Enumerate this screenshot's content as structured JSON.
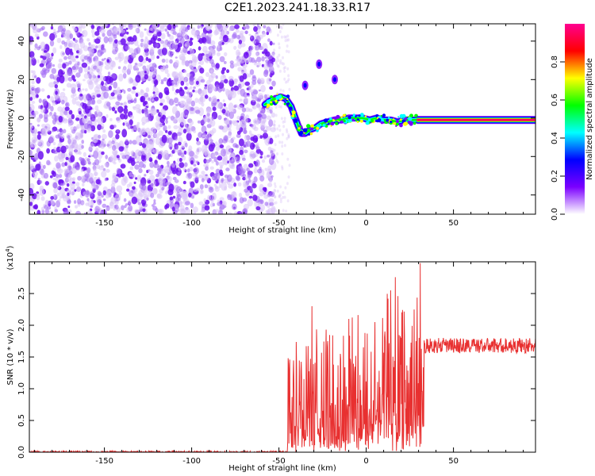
{
  "title": "C2E1.2023.241.18.33.R17",
  "chart_data": [
    {
      "type": "heatmap",
      "xlabel": "Height of straight line (km)",
      "ylabel": "Frequency (Hz)",
      "xlim": [
        -193,
        97
      ],
      "ylim": [
        -50,
        49
      ],
      "xticks": [
        -150,
        -100,
        -50,
        0,
        50
      ],
      "xtick_labels": [
        "-150",
        "-100",
        "-50",
        "0",
        "50"
      ],
      "yticks": [
        -40,
        -20,
        0,
        20,
        40
      ],
      "ytick_labels": [
        "-40",
        "-20",
        "0",
        "20",
        "40"
      ],
      "noise_region_x": [
        -193,
        -53
      ],
      "ridge": {
        "x": [
          -58,
          -55,
          -52,
          -49,
          -46,
          -43,
          -41,
          -39,
          -37,
          -35,
          -32,
          -29,
          -26,
          -22,
          -18,
          -14,
          -10,
          -6,
          -2,
          2,
          6,
          10,
          14,
          18,
          22,
          26,
          29
        ],
        "y": [
          7,
          9,
          10,
          11,
          10,
          6,
          1,
          -4,
          -8,
          -8,
          -6,
          -5,
          -3,
          -2,
          -1,
          -1,
          0,
          0,
          0,
          -1,
          0,
          -1,
          -1,
          -2,
          -1,
          -1,
          -1
        ]
      },
      "isolated_blobs": [
        {
          "x": -27,
          "y": 28
        },
        {
          "x": -35,
          "y": 17
        },
        {
          "x": -18,
          "y": 20
        }
      ],
      "band": {
        "x": [
          29,
          97
        ],
        "y": -1
      },
      "colorbar": {
        "label": "Normalized spectral amplitude",
        "range": [
          0.0,
          1.0
        ],
        "ticks": [
          0.0,
          0.2,
          0.4,
          0.6,
          0.8
        ],
        "tick_labels": [
          "0.0",
          "0.2",
          "0.4",
          "0.6",
          "0.8"
        ],
        "colors": [
          "#ffffff",
          "#7b00ff",
          "#0000ff",
          "#00ffff",
          "#00ff00",
          "#ffff00",
          "#ff0000",
          "#ff0090"
        ]
      }
    },
    {
      "type": "line",
      "xlabel": "Height of straight line (km)",
      "ylabel": "SNR (10 * v/v)",
      "yscale_label": "(x10",
      "yscale_exponent": "4",
      "yscale_label_end": ")",
      "xlim": [
        -193,
        97
      ],
      "ylim": [
        0,
        3.0
      ],
      "xticks": [
        -150,
        -100,
        -50,
        0,
        50
      ],
      "xtick_labels": [
        "-150",
        "-100",
        "-50",
        "0",
        "50"
      ],
      "yticks": [
        0.0,
        0.5,
        1.0,
        1.5,
        2.0,
        2.5
      ],
      "ytick_labels": [
        "0.0",
        "0.5",
        "1.0",
        "1.5",
        "2.0",
        "2.5"
      ],
      "color": "#e83030",
      "segments": [
        {
          "x_start": -193,
          "x_end": -45,
          "base": 0.0,
          "amp": 0.02
        },
        {
          "x_start": -45,
          "x_end": -30,
          "base": 0.25,
          "amp": 1.6
        },
        {
          "x_start": -30,
          "x_end": -10,
          "base": 0.15,
          "amp": 1.9
        },
        {
          "x_start": -10,
          "x_end": 10,
          "base": 0.35,
          "amp": 2.0
        },
        {
          "x_start": 10,
          "x_end": 33,
          "base": 0.45,
          "amp": 2.4
        },
        {
          "x_start": 33,
          "x_end": 97,
          "base": 1.68,
          "amp": 0.12
        }
      ],
      "peaks": [
        {
          "x": -31,
          "y": 2.3
        },
        {
          "x": -22,
          "y": 1.75
        },
        {
          "x": -10,
          "y": 2.1
        },
        {
          "x": 5,
          "y": 2.05
        },
        {
          "x": 14,
          "y": 2.55
        },
        {
          "x": 31,
          "y": 2.98
        }
      ]
    }
  ]
}
